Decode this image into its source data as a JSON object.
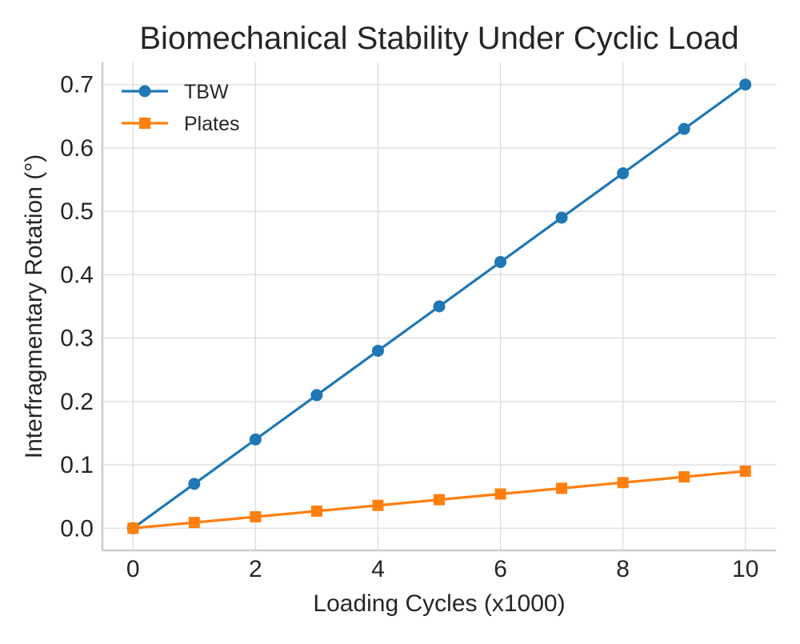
{
  "chart_data": {
    "type": "line",
    "title": "Biomechanical Stability Under Cyclic Load",
    "xlabel": "Loading Cycles (x1000)",
    "ylabel": "Interfragmentary Rotation (°)",
    "x": [
      0,
      1,
      2,
      3,
      4,
      5,
      6,
      7,
      8,
      9,
      10
    ],
    "xlim": [
      -0.5,
      10.5
    ],
    "ylim": [
      -0.035,
      0.735
    ],
    "xticks": [
      0,
      2,
      4,
      6,
      8,
      10
    ],
    "xtick_labels": [
      "0",
      "2",
      "4",
      "6",
      "8",
      "10"
    ],
    "yticks": [
      0.0,
      0.1,
      0.2,
      0.3,
      0.4,
      0.5,
      0.6,
      0.7
    ],
    "ytick_labels": [
      "0.0",
      "0.1",
      "0.2",
      "0.3",
      "0.4",
      "0.5",
      "0.6",
      "0.7"
    ],
    "grid": true,
    "legend_position": "top-left",
    "series": [
      {
        "name": "TBW",
        "color": "#1f77b4",
        "marker": "circle",
        "values": [
          0.0,
          0.07,
          0.14,
          0.21,
          0.28,
          0.35,
          0.42,
          0.49,
          0.56,
          0.63,
          0.7
        ]
      },
      {
        "name": "Plates",
        "color": "#ff7f0e",
        "marker": "square",
        "values": [
          0.0,
          0.009,
          0.018,
          0.027,
          0.036,
          0.045,
          0.054,
          0.063,
          0.072,
          0.081,
          0.09
        ]
      }
    ]
  }
}
